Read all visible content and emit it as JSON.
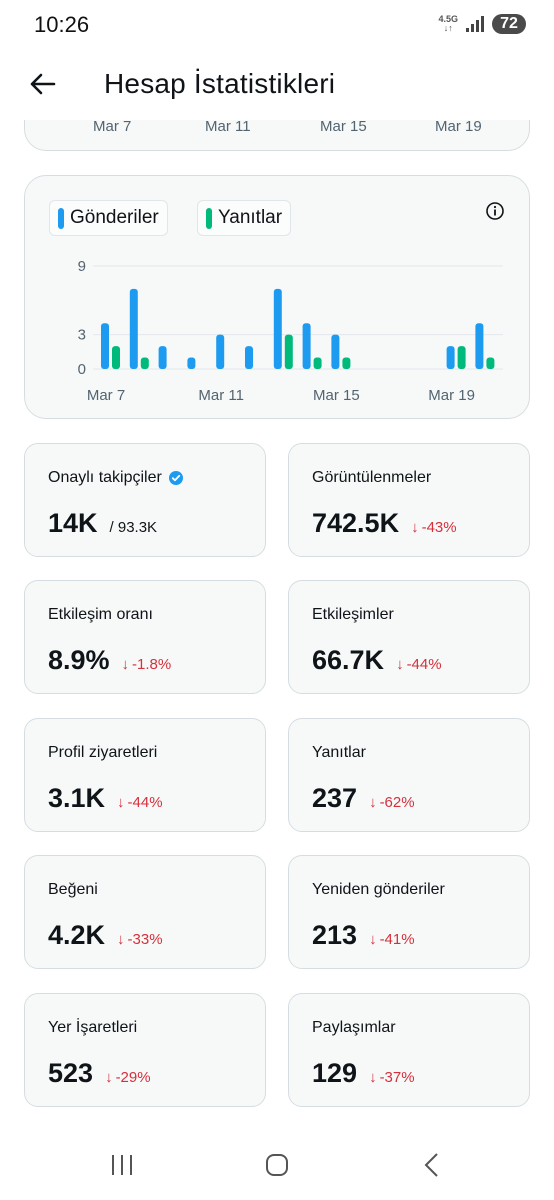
{
  "status_bar": {
    "time": "10:26",
    "network": "4.5G",
    "battery": "72"
  },
  "header": {
    "title": "Hesap İstatistikleri"
  },
  "top_card": {
    "labels": [
      "Mar 7",
      "Mar 11",
      "Mar 15",
      "Mar 19"
    ]
  },
  "chart_card": {
    "legend": [
      "Gönderiler",
      "Yanıtlar"
    ],
    "colors": {
      "posts": "#1d9bf0",
      "replies": "#00ba7c"
    }
  },
  "chart_data": {
    "type": "bar",
    "categories": [
      "Mar 7",
      "Mar 8",
      "Mar 9",
      "Mar 10",
      "Mar 11",
      "Mar 12",
      "Mar 13",
      "Mar 14",
      "Mar 15",
      "Mar 16",
      "Mar 17",
      "Mar 18",
      "Mar 19",
      "Mar 20"
    ],
    "series": [
      {
        "name": "Gönderiler",
        "values": [
          4,
          7,
          2,
          1,
          3,
          2,
          7,
          4,
          3,
          0,
          0,
          0,
          2,
          4
        ]
      },
      {
        "name": "Yanıtlar",
        "values": [
          2,
          1,
          0,
          0,
          0,
          0,
          3,
          1,
          1,
          0,
          0,
          0,
          2,
          1
        ]
      }
    ],
    "yticks": [
      "0",
      "3",
      "9"
    ],
    "xticks": [
      "Mar 7",
      "Mar 11",
      "Mar 15",
      "Mar 19"
    ],
    "ylim": [
      0,
      9
    ],
    "grid": true,
    "legend": "top-left"
  },
  "stats": [
    {
      "label": "Onaylı takipçiler",
      "value": "14K",
      "sub": "/ 93.3K",
      "verified": true
    },
    {
      "label": "Görüntülenmeler",
      "value": "742.5K",
      "delta": "-43%"
    },
    {
      "label": "Etkileşim oranı",
      "value": "8.9%",
      "delta": "-1.8%"
    },
    {
      "label": "Etkileşimler",
      "value": "66.7K",
      "delta": "-44%"
    },
    {
      "label": "Profil ziyaretleri",
      "value": "3.1K",
      "delta": "-44%"
    },
    {
      "label": "Yanıtlar",
      "value": "237",
      "delta": "-62%"
    },
    {
      "label": "Beğeni",
      "value": "4.2K",
      "delta": "-33%"
    },
    {
      "label": "Yeniden gönderiler",
      "value": "213",
      "delta": "-41%"
    },
    {
      "label": "Yer İşaretleri",
      "value": "523",
      "delta": "-29%"
    },
    {
      "label": "Paylaşımlar",
      "value": "129",
      "delta": "-37%"
    }
  ]
}
